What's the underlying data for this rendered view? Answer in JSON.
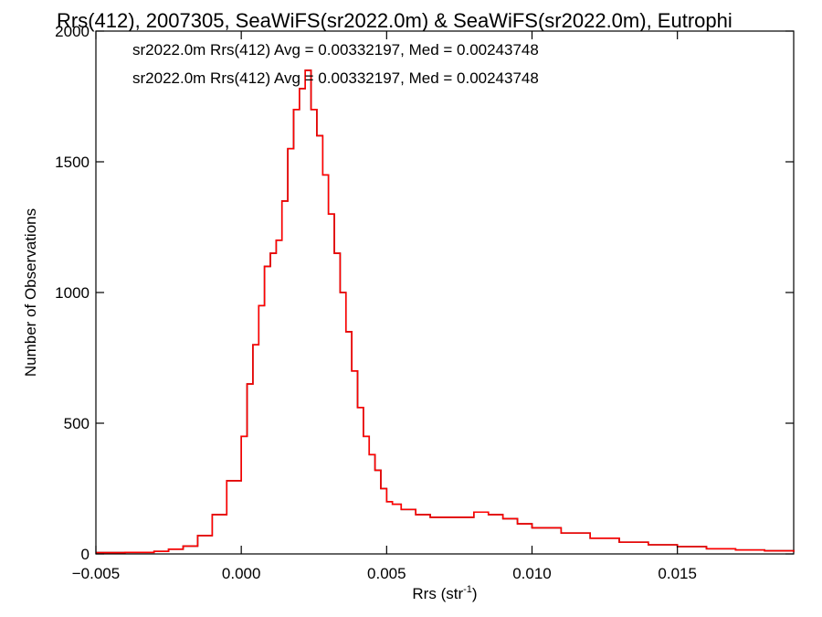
{
  "chart_data": {
    "type": "line",
    "title": "Rrs(412), 2007305, SeaWiFS(sr2022.0m) & SeaWiFS(sr2022.0m), Eutrophi",
    "xlabel": "Rrs (str",
    "xlabel_sup": "-1",
    "xlabel_close": ")",
    "ylabel": "Number of Observations",
    "xlim": [
      -0.005,
      0.019
    ],
    "ylim": [
      0,
      2000
    ],
    "x_ticks": [
      -0.005,
      0.0,
      0.005,
      0.01,
      0.015
    ],
    "x_tick_labels": [
      "−0.005",
      "0.000",
      "0.005",
      "0.010",
      "0.015"
    ],
    "y_ticks": [
      0,
      500,
      1000,
      1500,
      2000
    ],
    "y_tick_labels": [
      "0",
      "500",
      "1000",
      "1500",
      "2000"
    ],
    "grid": false,
    "legend_position": "top-left",
    "series": [
      {
        "name": "sr2022.0m Rrs(412) Avg = 0.00332197, Med = 0.00243748",
        "color": "#000000",
        "style": "step"
      },
      {
        "name": "sr2022.0m Rrs(412) Avg = 0.00332197, Med = 0.00243748",
        "color": "#ff0000",
        "style": "step"
      }
    ],
    "x": [
      -0.005,
      -0.004,
      -0.003,
      -0.0025,
      -0.002,
      -0.0015,
      -0.001,
      -0.0005,
      0.0,
      0.0002,
      0.0004,
      0.0006,
      0.0008,
      0.001,
      0.0012,
      0.0014,
      0.0016,
      0.0018,
      0.002,
      0.0022,
      0.0024,
      0.0026,
      0.0028,
      0.003,
      0.0032,
      0.0034,
      0.0036,
      0.0038,
      0.004,
      0.0042,
      0.0044,
      0.0046,
      0.0048,
      0.005,
      0.0052,
      0.0055,
      0.006,
      0.0065,
      0.007,
      0.0075,
      0.008,
      0.0085,
      0.009,
      0.0095,
      0.01,
      0.011,
      0.012,
      0.013,
      0.014,
      0.015,
      0.016,
      0.017,
      0.018,
      0.019
    ],
    "y": [
      5,
      6,
      10,
      18,
      30,
      70,
      150,
      280,
      450,
      650,
      800,
      950,
      1100,
      1150,
      1200,
      1350,
      1550,
      1700,
      1780,
      1850,
      1700,
      1600,
      1450,
      1300,
      1150,
      1000,
      850,
      700,
      560,
      450,
      380,
      320,
      250,
      200,
      190,
      170,
      150,
      140,
      140,
      140,
      160,
      150,
      135,
      115,
      100,
      80,
      60,
      45,
      35,
      28,
      20,
      15,
      12,
      8
    ]
  }
}
